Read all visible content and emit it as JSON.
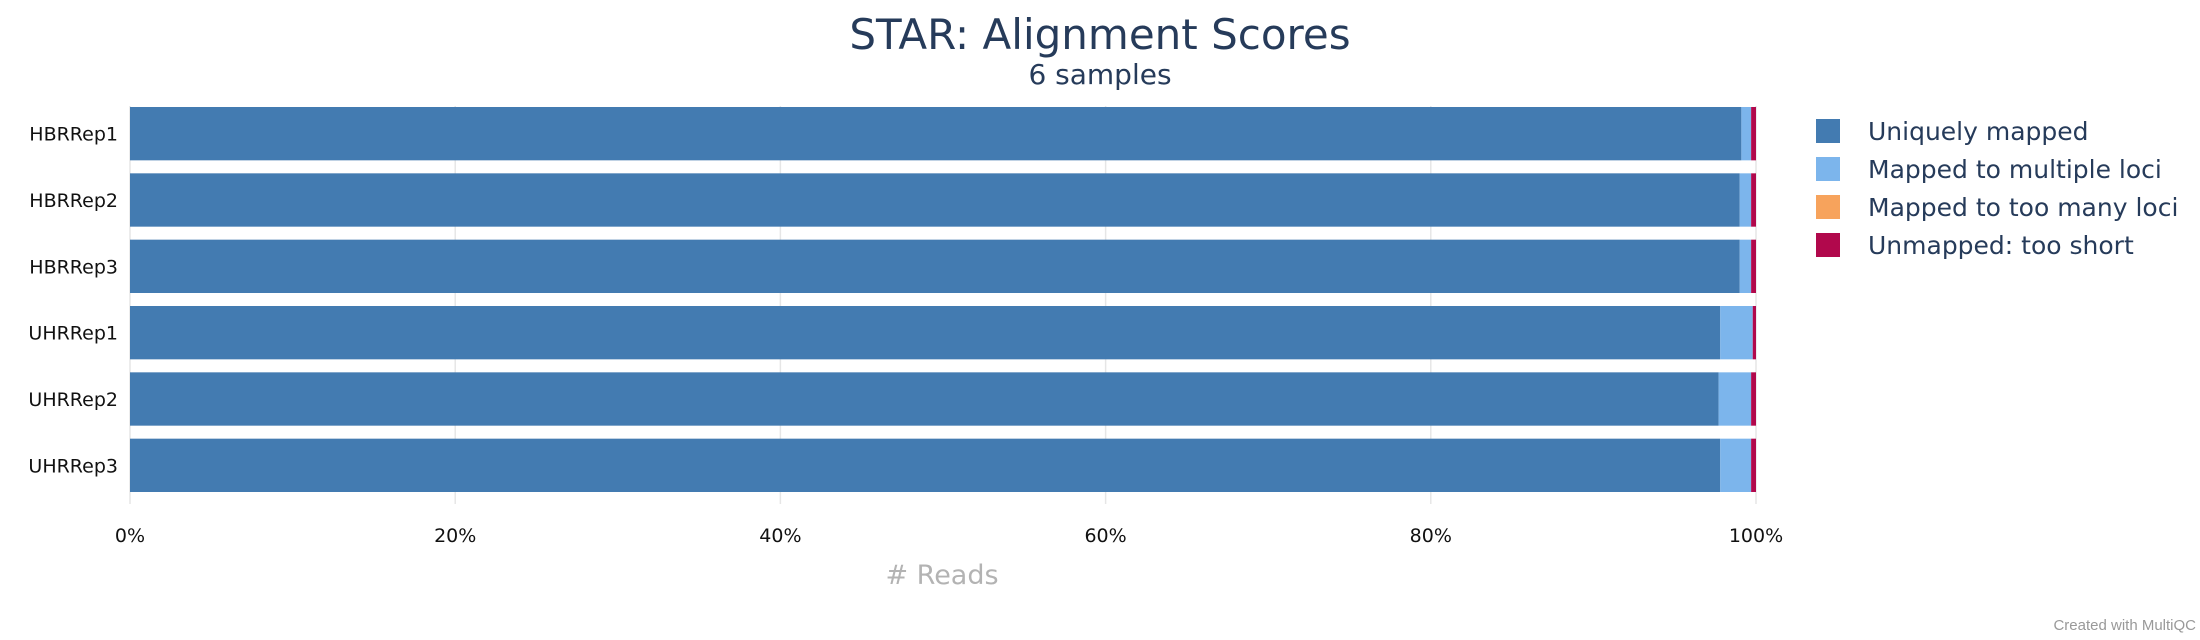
{
  "chart_data": {
    "type": "bar",
    "orientation": "horizontal",
    "stacked": true,
    "percent": true,
    "title": "STAR: Alignment Scores",
    "subtitle": "6 samples",
    "xlabel": "# Reads",
    "ylabel": "",
    "xlim": [
      0,
      100
    ],
    "x_ticks": [
      "0%",
      "20%",
      "40%",
      "60%",
      "80%",
      "100%"
    ],
    "grid": true,
    "legend_position": "right",
    "categories": [
      "HBRRep1",
      "HBRRep2",
      "HBRRep3",
      "UHRRep1",
      "UHRRep2",
      "UHRRep3"
    ],
    "series": [
      {
        "name": "Uniquely mapped",
        "color": "#437bb1",
        "values": [
          99.1,
          99.0,
          99.0,
          97.8,
          97.7,
          97.8
        ]
      },
      {
        "name": "Mapped to multiple loci",
        "color": "#7cb5ec",
        "values": [
          0.6,
          0.7,
          0.7,
          2.0,
          2.0,
          1.9
        ]
      },
      {
        "name": "Mapped to too many loci",
        "color": "#f7a35c",
        "values": [
          0.0,
          0.0,
          0.0,
          0.0,
          0.0,
          0.0
        ]
      },
      {
        "name": "Unmapped: too short",
        "color": "#b1084c",
        "values": [
          0.3,
          0.3,
          0.3,
          0.2,
          0.3,
          0.3
        ]
      }
    ]
  },
  "footer": {
    "credit": "Created with MultiQC"
  }
}
